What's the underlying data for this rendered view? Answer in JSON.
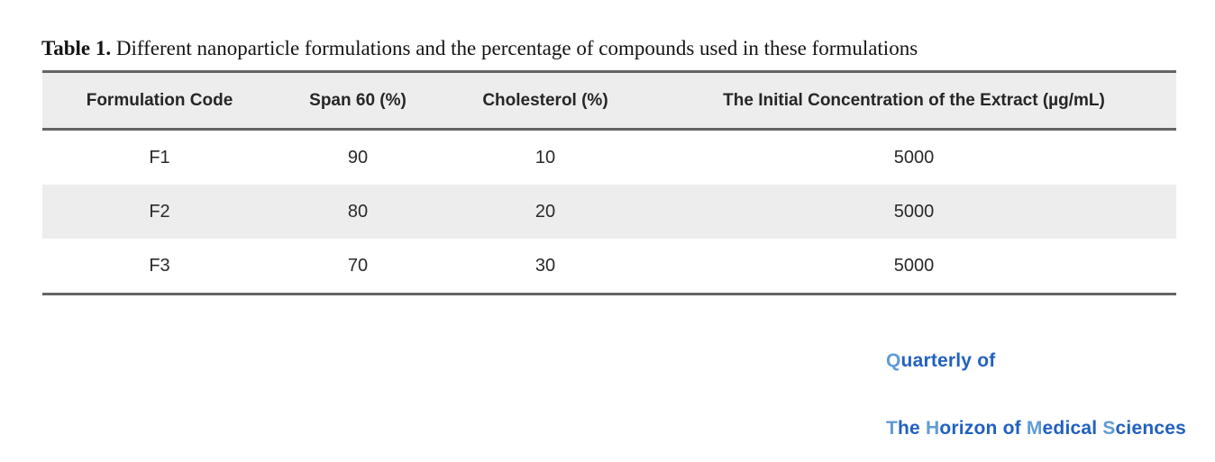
{
  "caption": {
    "label": "Table 1.",
    "text": " Different nanoparticle formulations and the percentage of compounds used in these formulations"
  },
  "table": {
    "headers": [
      "Formulation Code",
      "Span 60 (%)",
      "Cholesterol (%)",
      "The Initial Concentration of the Extract (µg/mL)"
    ],
    "rows": [
      {
        "cells": [
          "F1",
          "90",
          "10",
          "5000"
        ]
      },
      {
        "cells": [
          "F2",
          "80",
          "20",
          "5000"
        ]
      },
      {
        "cells": [
          "F3",
          "70",
          "30",
          "5000"
        ]
      }
    ]
  },
  "chart_data": {
    "type": "table",
    "title": "Table 1. Different nanoparticle formulations and the percentage of compounds used in these formulations",
    "columns": [
      "Formulation Code",
      "Span 60 (%)",
      "Cholesterol (%)",
      "The Initial Concentration of the Extract (µg/mL)"
    ],
    "rows": [
      [
        "F1",
        90,
        10,
        5000
      ],
      [
        "F2",
        80,
        20,
        5000
      ],
      [
        "F3",
        70,
        30,
        5000
      ]
    ]
  },
  "logo": {
    "line1": [
      {
        "t": "Q",
        "c": "light"
      },
      {
        "t": "uarterly of",
        "c": "dark"
      }
    ],
    "line2": [
      {
        "t": "T",
        "c": "light"
      },
      {
        "t": "he ",
        "c": "dark"
      },
      {
        "t": "H",
        "c": "light"
      },
      {
        "t": "orizon of ",
        "c": "dark"
      },
      {
        "t": "M",
        "c": "light"
      },
      {
        "t": "edical ",
        "c": "dark"
      },
      {
        "t": "S",
        "c": "light"
      },
      {
        "t": "ciences",
        "c": "dark"
      }
    ]
  },
  "colors": {
    "logo_dark": "#2161c0",
    "logo_light": "#5f9cd6",
    "rule": "#646464",
    "row_stripe": "#ededed"
  }
}
